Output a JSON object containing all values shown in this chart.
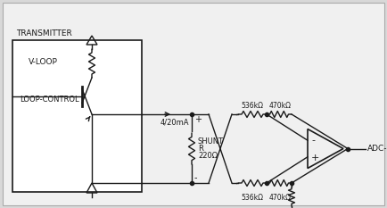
{
  "bg_color": "#d8d8d8",
  "inner_bg": "#ffffff",
  "line_color": "#1a1a1a",
  "labels": {
    "transmitter": "TRANSMITTER",
    "v_loop": "V-LOOP",
    "loop_control": "LOOP-CONTROL",
    "current": "4/20mA",
    "shunt": "SHUNT",
    "shunt_r": "R",
    "shunt_val": "220Ω",
    "r1_top": "536kΩ",
    "r2_top": "470kΩ",
    "r1_bot": "536kΩ",
    "r2_bot": "470kΩ",
    "adc": "ADC-IN"
  },
  "figsize": [
    4.34,
    2.33
  ],
  "dpi": 100
}
